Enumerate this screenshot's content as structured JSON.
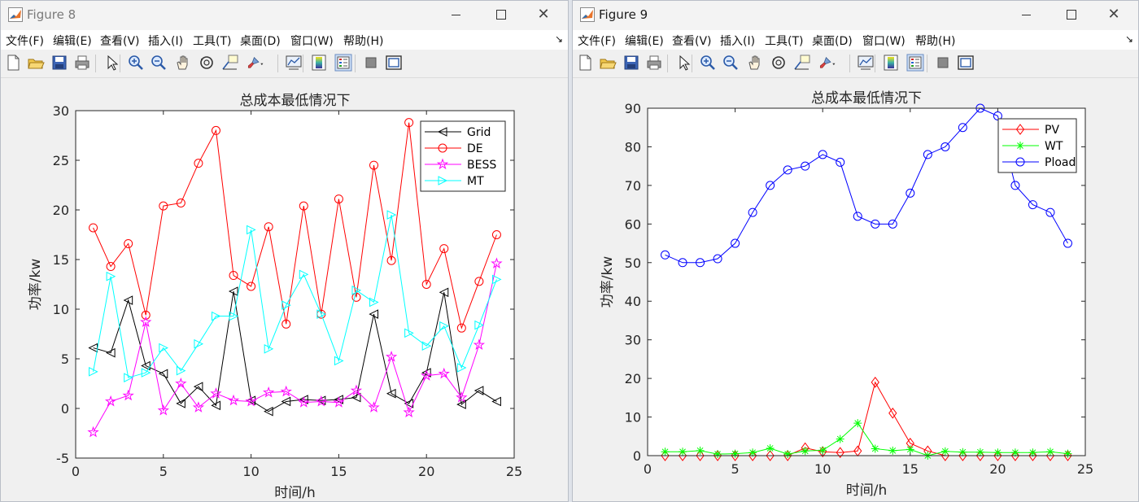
{
  "menu_items": [
    "文件(F)",
    "编辑(E)",
    "查看(V)",
    "插入(I)",
    "工具(T)",
    "桌面(D)",
    "窗口(W)",
    "帮助(H)"
  ],
  "toolbar_icons": [
    "new-file-icon",
    "open-folder-icon",
    "save-icon",
    "print-icon",
    "pointer-icon",
    "zoom-in-icon",
    "zoom-out-icon",
    "pan-icon",
    "rotate-3d-icon",
    "data-tip-icon",
    "brush-icon",
    "link-plot-icon",
    "colorbar-icon",
    "legend-icon",
    "hide-plot-tools-icon",
    "show-plot-tools-icon"
  ],
  "windows": [
    {
      "title": "Figure 8",
      "chart_data": {
        "type": "line",
        "title": "总成本最低情况下",
        "xlabel": "时间/h",
        "ylabel": "功率/kw",
        "xlim": [
          0,
          25
        ],
        "ylim": [
          -5,
          30
        ],
        "xticks": [
          0,
          5,
          10,
          15,
          20,
          25
        ],
        "yticks": [
          -5,
          0,
          5,
          10,
          15,
          20,
          25,
          30
        ],
        "grid": false,
        "legend_position": "top-right",
        "x": [
          1,
          2,
          3,
          4,
          5,
          6,
          7,
          8,
          9,
          10,
          11,
          12,
          13,
          14,
          15,
          16,
          17,
          18,
          19,
          20,
          21,
          22,
          23,
          24
        ],
        "series": [
          {
            "name": "Grid",
            "color": "#000000",
            "marker": "triangle-left",
            "values": [
              6.1,
              5.6,
              10.9,
              4.3,
              3.5,
              0.5,
              2.2,
              0.3,
              11.8,
              0.8,
              -0.3,
              0.7,
              0.9,
              0.8,
              0.9,
              1.1,
              9.5,
              1.5,
              0.5,
              3.6,
              11.7,
              0.4,
              1.8,
              0.7
            ]
          },
          {
            "name": "DE",
            "color": "#ff0000",
            "marker": "circle",
            "values": [
              18.2,
              14.3,
              16.6,
              9.4,
              20.4,
              20.7,
              24.7,
              28.0,
              13.4,
              12.3,
              18.3,
              8.5,
              20.4,
              9.5,
              21.1,
              11.2,
              24.5,
              14.9,
              28.8,
              12.5,
              16.1,
              8.1,
              12.8,
              17.5
            ]
          },
          {
            "name": "BESS",
            "color": "#ff00ff",
            "marker": "star",
            "values": [
              -2.4,
              0.7,
              1.3,
              8.7,
              -0.2,
              2.5,
              0.1,
              1.5,
              0.8,
              0.7,
              1.6,
              1.7,
              0.6,
              0.7,
              0.6,
              1.8,
              0.1,
              5.2,
              -0.4,
              3.3,
              3.5,
              1.1,
              6.4,
              14.6
            ]
          },
          {
            "name": "MT",
            "color": "#00ffff",
            "marker": "triangle-right",
            "values": [
              3.7,
              13.3,
              3.1,
              3.6,
              6.1,
              3.8,
              6.5,
              9.3,
              9.3,
              18.0,
              6.0,
              10.4,
              13.5,
              9.5,
              4.8,
              11.9,
              10.7,
              19.5,
              7.6,
              6.3,
              8.3,
              4.1,
              8.4,
              13.0
            ]
          }
        ]
      }
    },
    {
      "title": "Figure 9",
      "chart_data": {
        "type": "line",
        "title": "总成本最低情况下",
        "xlabel": "时间/h",
        "ylabel": "功率/kw",
        "xlim": [
          0,
          25
        ],
        "ylim": [
          0,
          90
        ],
        "xticks": [
          0,
          5,
          10,
          15,
          20,
          25
        ],
        "yticks": [
          0,
          10,
          20,
          30,
          40,
          50,
          60,
          70,
          80,
          90
        ],
        "grid": false,
        "legend_position": "top-right",
        "x": [
          1,
          2,
          3,
          4,
          5,
          6,
          7,
          8,
          9,
          10,
          11,
          12,
          13,
          14,
          15,
          16,
          17,
          18,
          19,
          20,
          21,
          22,
          23,
          24
        ],
        "series": [
          {
            "name": "PV",
            "color": "#ff0000",
            "marker": "diamond",
            "values": [
              0,
              0,
              0,
              0,
              0,
              0,
              0,
              0,
              2,
              1,
              0.8,
              1.2,
              19,
              11,
              3.2,
              1.2,
              0,
              0,
              0,
              0,
              0,
              0,
              0,
              0
            ]
          },
          {
            "name": "WT",
            "color": "#00ff00",
            "marker": "asterisk",
            "values": [
              1,
              1,
              1.3,
              0.4,
              0.5,
              0.8,
              1.9,
              0.4,
              1.2,
              1.4,
              4.3,
              8.4,
              1.8,
              1.3,
              1.6,
              0,
              1.1,
              0.9,
              0.9,
              0.8,
              0.8,
              0.8,
              1,
              0.5
            ]
          },
          {
            "name": "Pload",
            "color": "#0000ff",
            "marker": "circle",
            "values": [
              52,
              50,
              50,
              51,
              55,
              63,
              70,
              74,
              75,
              78,
              76,
              62,
              60,
              60,
              68,
              78,
              80,
              85,
              90,
              88,
              70,
              65,
              63,
              55
            ]
          }
        ]
      }
    }
  ]
}
